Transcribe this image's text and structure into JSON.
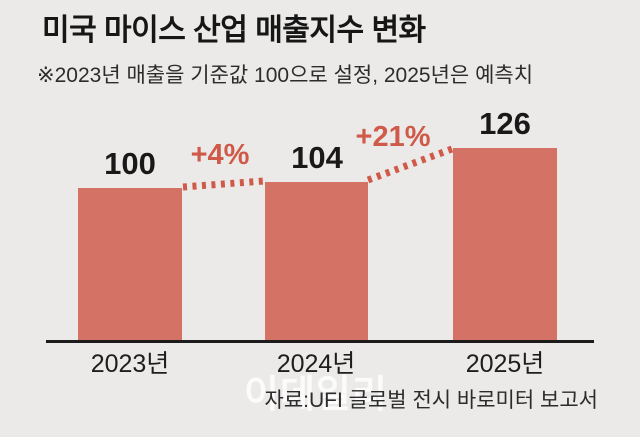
{
  "header": {
    "title": "미국 마이스 산업 매출지수 변화",
    "subtitle": "※2023년 매출을 기준값 100으로 설정, 2025년은 예측치"
  },
  "footer": {
    "source": "자료:UFI 글로벌 전시 바로미터 보고서",
    "watermark": "이데일리"
  },
  "colors": {
    "background": "#ebeae8",
    "bar": "#d47365",
    "accent": "#d05a49",
    "text": "#161616"
  },
  "chart_data": {
    "type": "bar",
    "title": "미국 마이스 산업 매출지수 변화",
    "categories": [
      "2023년",
      "2024년",
      "2025년"
    ],
    "values": [
      100,
      104,
      126
    ],
    "value_labels": [
      "100",
      "104",
      "126"
    ],
    "change_labels": [
      "+4%",
      "+21%"
    ],
    "baseline_value": 100,
    "xlabel": "",
    "ylabel": "",
    "ylim": [
      0,
      126
    ],
    "grid": false,
    "legend": false,
    "bar_color": "#d47365",
    "connector_style": "dashed"
  }
}
